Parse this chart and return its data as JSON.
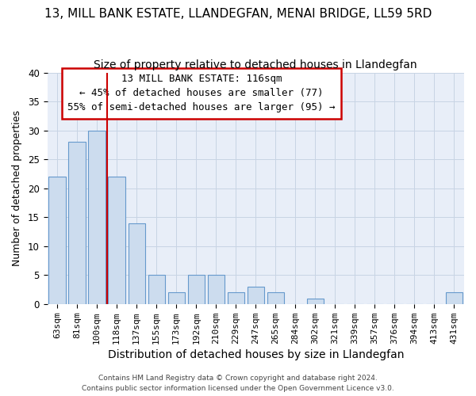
{
  "title": "13, MILL BANK ESTATE, LLANDEGFAN, MENAI BRIDGE, LL59 5RD",
  "subtitle": "Size of property relative to detached houses in Llandegfan",
  "xlabel": "Distribution of detached houses by size in Llandegfan",
  "ylabel": "Number of detached properties",
  "categories": [
    "63sqm",
    "81sqm",
    "100sqm",
    "118sqm",
    "137sqm",
    "155sqm",
    "173sqm",
    "192sqm",
    "210sqm",
    "229sqm",
    "247sqm",
    "265sqm",
    "284sqm",
    "302sqm",
    "321sqm",
    "339sqm",
    "357sqm",
    "376sqm",
    "394sqm",
    "413sqm",
    "431sqm"
  ],
  "values": [
    22,
    28,
    30,
    22,
    14,
    5,
    2,
    5,
    5,
    2,
    3,
    2,
    0,
    1,
    0,
    0,
    0,
    0,
    0,
    0,
    2
  ],
  "bar_color": "#ccdcee",
  "bar_edge_color": "#6699cc",
  "vline_x": 2.5,
  "vline_color": "#cc0000",
  "annotation_lines": [
    "13 MILL BANK ESTATE: 116sqm",
    "← 45% of detached houses are smaller (77)",
    "55% of semi-detached houses are larger (95) →"
  ],
  "annotation_box_edge_color": "#cc0000",
  "ylim": [
    0,
    40
  ],
  "yticks": [
    0,
    5,
    10,
    15,
    20,
    25,
    30,
    35,
    40
  ],
  "footer_line1": "Contains HM Land Registry data © Crown copyright and database right 2024.",
  "footer_line2": "Contains public sector information licensed under the Open Government Licence v3.0.",
  "background_color": "#ffffff",
  "plot_bg_color": "#e8eef8",
  "grid_color": "#c8d4e4",
  "title_fontsize": 11,
  "subtitle_fontsize": 10,
  "xlabel_fontsize": 10,
  "ylabel_fontsize": 9,
  "annotation_fontsize": 9
}
